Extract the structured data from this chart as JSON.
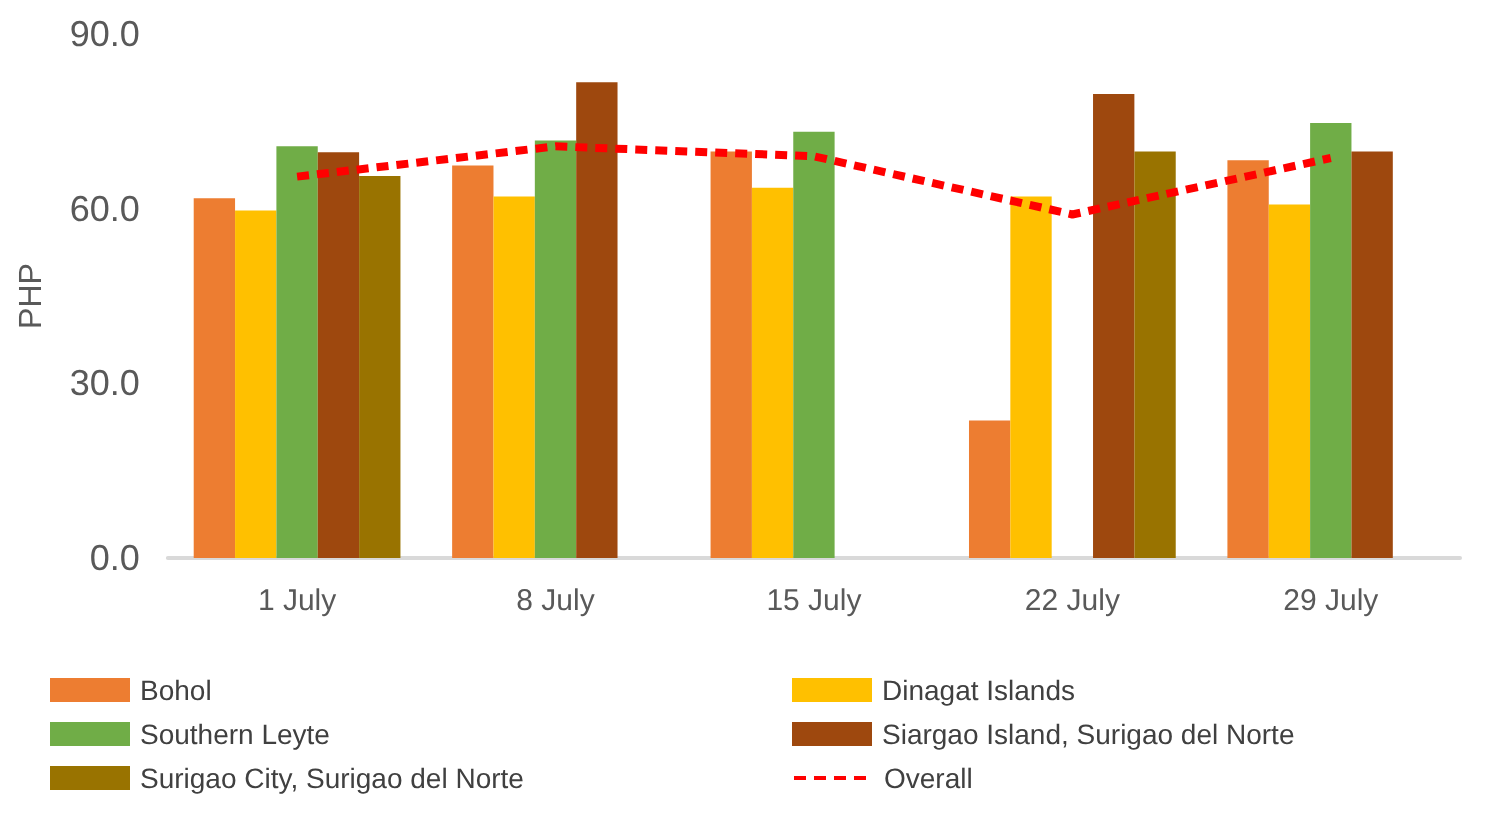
{
  "chart_data": {
    "type": "bar",
    "ylabel": "PHP",
    "categories": [
      "1 July",
      "8 July",
      "15 July",
      "22 July",
      "29 July"
    ],
    "ylim": [
      0,
      90
    ],
    "yticks": [
      {
        "value": 0,
        "label": "0.0"
      },
      {
        "value": 30,
        "label": "30.0"
      },
      {
        "value": 60,
        "label": "60.0"
      },
      {
        "value": 90,
        "label": "90.0"
      }
    ],
    "grid": false,
    "legend": "bottom",
    "series": [
      {
        "name": "Bohol",
        "color": "#ed7d31",
        "values": [
          61.8,
          67.4,
          69.8,
          23.6,
          68.3
        ]
      },
      {
        "name": "Dinagat Islands",
        "color": "#ffc000",
        "values": [
          59.7,
          62.1,
          63.6,
          62.1,
          60.7
        ]
      },
      {
        "name": "Southern Leyte",
        "color": "#70ad47",
        "values": [
          70.7,
          71.7,
          73.2,
          null,
          74.7
        ]
      },
      {
        "name": "Siargao Island, Surigao del Norte",
        "color": "#9e480e",
        "values": [
          69.7,
          81.7,
          null,
          79.7,
          69.8
        ]
      },
      {
        "name": "Surigao City, Surigao del Norte",
        "color": "#997300",
        "values": [
          65.6,
          null,
          null,
          69.8,
          null
        ]
      },
      {
        "name": "Overall",
        "type": "line",
        "color": "#ff0000",
        "line_style": "dashed",
        "marker": "none",
        "values": [
          65.5,
          70.7,
          69.0,
          59.0,
          68.7
        ]
      }
    ]
  }
}
